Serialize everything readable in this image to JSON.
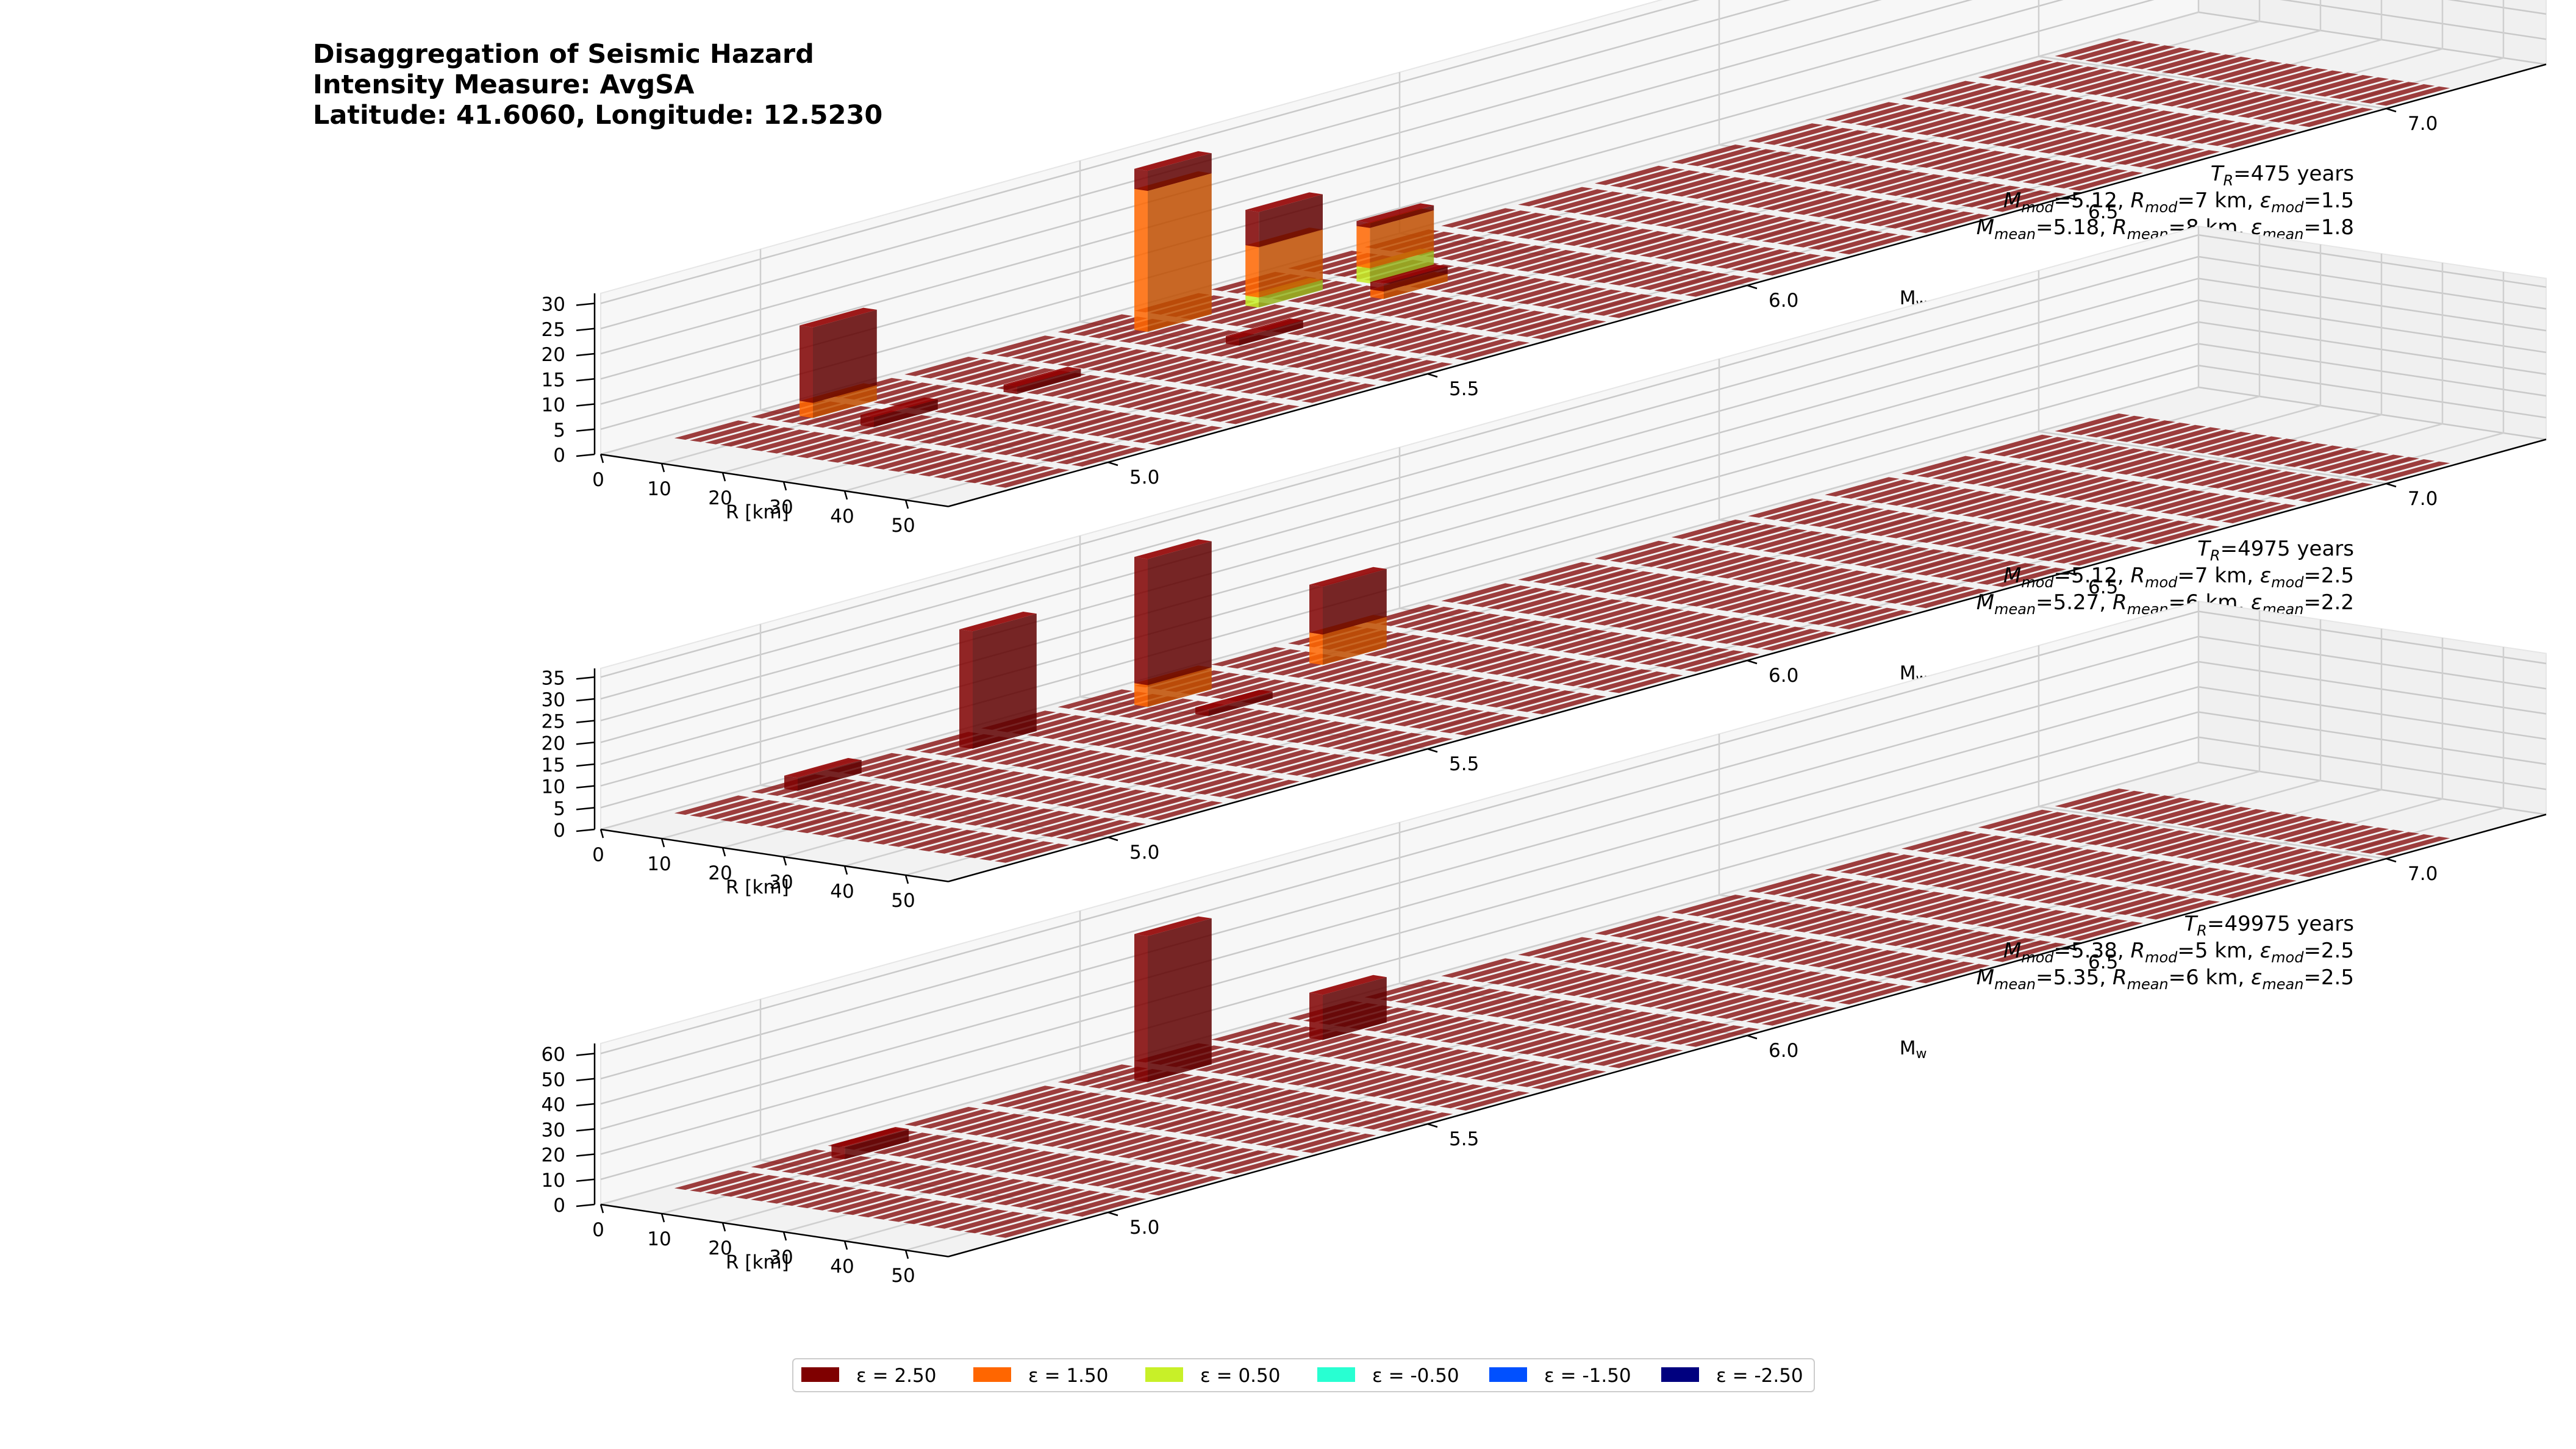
{
  "title": {
    "line1": "Disaggregation of Seismic Hazard",
    "line2": "Intensity Measure: AvgSA",
    "line3": "Latitude: 41.6060, Longitude: 12.5230"
  },
  "colors": {
    "eps_2.50": "#7f0000",
    "eps_1.50": "#ff6600",
    "eps_0.50": "#c8f028",
    "eps_-0.50": "#28ffd2",
    "eps_-1.50": "#0050ff",
    "eps_-2.50": "#00007f"
  },
  "legend": [
    "ε = 2.50",
    "ε = 1.50",
    "ε = 0.50",
    "ε = -0.50",
    "ε = -1.50",
    "ε = -2.50"
  ],
  "chart_data": [
    {
      "type": "bar3d",
      "xlabel": "R [km]",
      "ylabel": "Mw",
      "x_ticks": [
        "0",
        "10",
        "20",
        "30",
        "40",
        "50"
      ],
      "y_ticks": [
        "5.0",
        "5.5",
        "6.0",
        "6.5",
        "7.0"
      ],
      "z_ticks": [
        "0",
        "5",
        "10",
        "15",
        "20",
        "25",
        "30"
      ],
      "zlim": [
        0,
        32
      ],
      "annotation": {
        "tr_label": "T",
        "tr_sub": "R",
        "tr_value": "=475 years",
        "mod": {
          "m": "=5.12, ",
          "r": "=7 km, ",
          "e": "=1.5"
        },
        "mean": {
          "m": "=5.18, ",
          "r": "=8 km, ",
          "e": "=1.8"
        }
      },
      "bars": [
        {
          "r": 7.5,
          "mw": 5.05,
          "segments": [
            {
              "eps": "1.50",
              "h": 3
            },
            {
              "eps": "2.50",
              "h": 15
            }
          ]
        },
        {
          "r": 10,
          "mw": 5.55,
          "segments": [
            {
              "eps": "1.50",
              "h": 28
            },
            {
              "eps": "2.50",
              "h": 4
            }
          ]
        },
        {
          "r": 12.5,
          "mw": 5.7,
          "segments": [
            {
              "eps": "0.50",
              "h": 2
            },
            {
              "eps": "1.50",
              "h": 10
            },
            {
              "eps": "2.50",
              "h": 7
            }
          ]
        },
        {
          "r": 15,
          "mw": 5.85,
          "segments": [
            {
              "eps": "0.50",
              "h": 3
            },
            {
              "eps": "1.50",
              "h": 8
            },
            {
              "eps": "2.50",
              "h": 1
            }
          ]
        },
        {
          "r": 17.5,
          "mw": 5.05,
          "segments": [
            {
              "eps": "2.50",
              "h": 2
            }
          ]
        },
        {
          "r": 20,
          "mw": 5.25,
          "segments": [
            {
              "eps": "2.50",
              "h": 1.5
            }
          ]
        },
        {
          "r": 22.5,
          "mw": 5.8,
          "segments": [
            {
              "eps": "1.50",
              "h": 1.5
            },
            {
              "eps": "2.50",
              "h": 1.5
            }
          ]
        },
        {
          "r": 25,
          "mw": 5.55,
          "segments": [
            {
              "eps": "2.50",
              "h": 1.5
            }
          ]
        }
      ]
    },
    {
      "type": "bar3d",
      "xlabel": "R [km]",
      "ylabel": "Mw",
      "x_ticks": [
        "0",
        "10",
        "20",
        "30",
        "40",
        "50"
      ],
      "y_ticks": [
        "5.0",
        "5.5",
        "6.0",
        "6.5",
        "7.0"
      ],
      "z_ticks": [
        "0",
        "5",
        "10",
        "15",
        "20",
        "25",
        "30",
        "35"
      ],
      "zlim": [
        0,
        37
      ],
      "annotation": {
        "tr_label": "T",
        "tr_sub": "R",
        "tr_value": "=4975 years",
        "mod": {
          "m": "=5.12, ",
          "r": "=7 km, ",
          "e": "=2.5"
        },
        "mean": {
          "m": "=5.27, ",
          "r": "=6 km, ",
          "e": "=2.2"
        }
      },
      "bars": [
        {
          "r": 5,
          "mw": 5.05,
          "segments": [
            {
              "eps": "2.50",
              "h": 3
            }
          ]
        },
        {
          "r": 7.5,
          "mw": 5.3,
          "segments": [
            {
              "eps": "2.50",
              "h": 27
            }
          ]
        },
        {
          "r": 10,
          "mw": 5.55,
          "segments": [
            {
              "eps": "1.50",
              "h": 5
            },
            {
              "eps": "2.50",
              "h": 29
            }
          ]
        },
        {
          "r": 12.5,
          "mw": 5.8,
          "segments": [
            {
              "eps": "1.50",
              "h": 7
            },
            {
              "eps": "2.50",
              "h": 11
            }
          ]
        },
        {
          "r": 20,
          "mw": 5.55,
          "segments": [
            {
              "eps": "2.50",
              "h": 1.5
            }
          ]
        }
      ]
    },
    {
      "type": "bar3d",
      "xlabel": "R [km]",
      "ylabel": "Mw",
      "x_ticks": [
        "0",
        "10",
        "20",
        "30",
        "40",
        "50"
      ],
      "y_ticks": [
        "5.0",
        "5.5",
        "6.0",
        "6.5",
        "7.0"
      ],
      "z_ticks": [
        "0",
        "10",
        "20",
        "30",
        "40",
        "50",
        "60"
      ],
      "zlim": [
        0,
        64
      ],
      "annotation": {
        "tr_label": "T",
        "tr_sub": "R",
        "tr_value": "=49975 years",
        "mod": {
          "m": "=5.38, ",
          "r": "=5 km, ",
          "e": "=2.5"
        },
        "mean": {
          "m": "=5.35, ",
          "r": "=6 km, ",
          "e": "=2.5"
        }
      },
      "bars": [
        {
          "r": 7.5,
          "mw": 5.1,
          "segments": [
            {
              "eps": "2.50",
              "h": 5
            }
          ]
        },
        {
          "r": 10,
          "mw": 5.55,
          "segments": [
            {
              "eps": "2.50",
              "h": 58
            }
          ]
        },
        {
          "r": 12.5,
          "mw": 5.8,
          "segments": [
            {
              "eps": "2.50",
              "h": 18
            }
          ]
        }
      ]
    }
  ]
}
